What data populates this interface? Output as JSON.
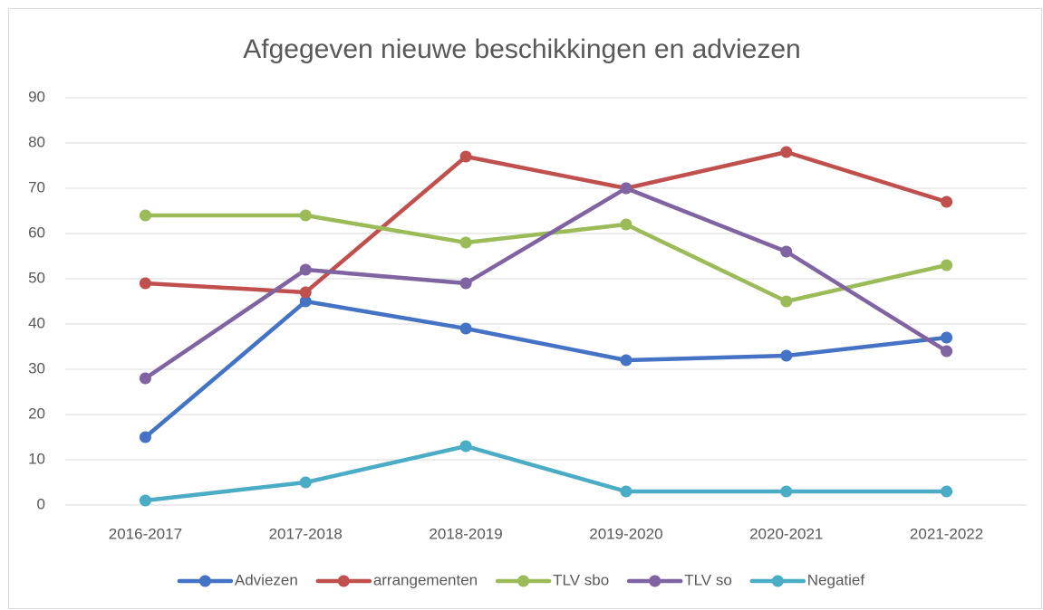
{
  "chart_data": {
    "type": "line",
    "title": "Afgegeven nieuwe beschikkingen en adviezen",
    "categories": [
      "2016-2017",
      "2017-2018",
      "2018-2019",
      "2019-2020",
      "2020-2021",
      "2021-2022"
    ],
    "series": [
      {
        "name": "Adviezen",
        "color": "#4472c4",
        "values": [
          15,
          45,
          39,
          32,
          33,
          37
        ]
      },
      {
        "name": "arrangementen",
        "color": "#c0504d",
        "values": [
          49,
          47,
          77,
          70,
          78,
          67
        ]
      },
      {
        "name": "TLV sbo",
        "color": "#9bbb59",
        "values": [
          64,
          64,
          58,
          62,
          45,
          53
        ]
      },
      {
        "name": "TLV so",
        "color": "#8064a2",
        "values": [
          28,
          52,
          49,
          70,
          56,
          34
        ]
      },
      {
        "name": "Negatief",
        "color": "#4bacc6",
        "values": [
          1,
          5,
          13,
          3,
          3,
          3
        ]
      }
    ],
    "ylim": [
      0,
      90
    ],
    "yticks": [
      0,
      10,
      20,
      30,
      40,
      50,
      60,
      70,
      80,
      90
    ],
    "grid": true,
    "legend": "bottom"
  }
}
